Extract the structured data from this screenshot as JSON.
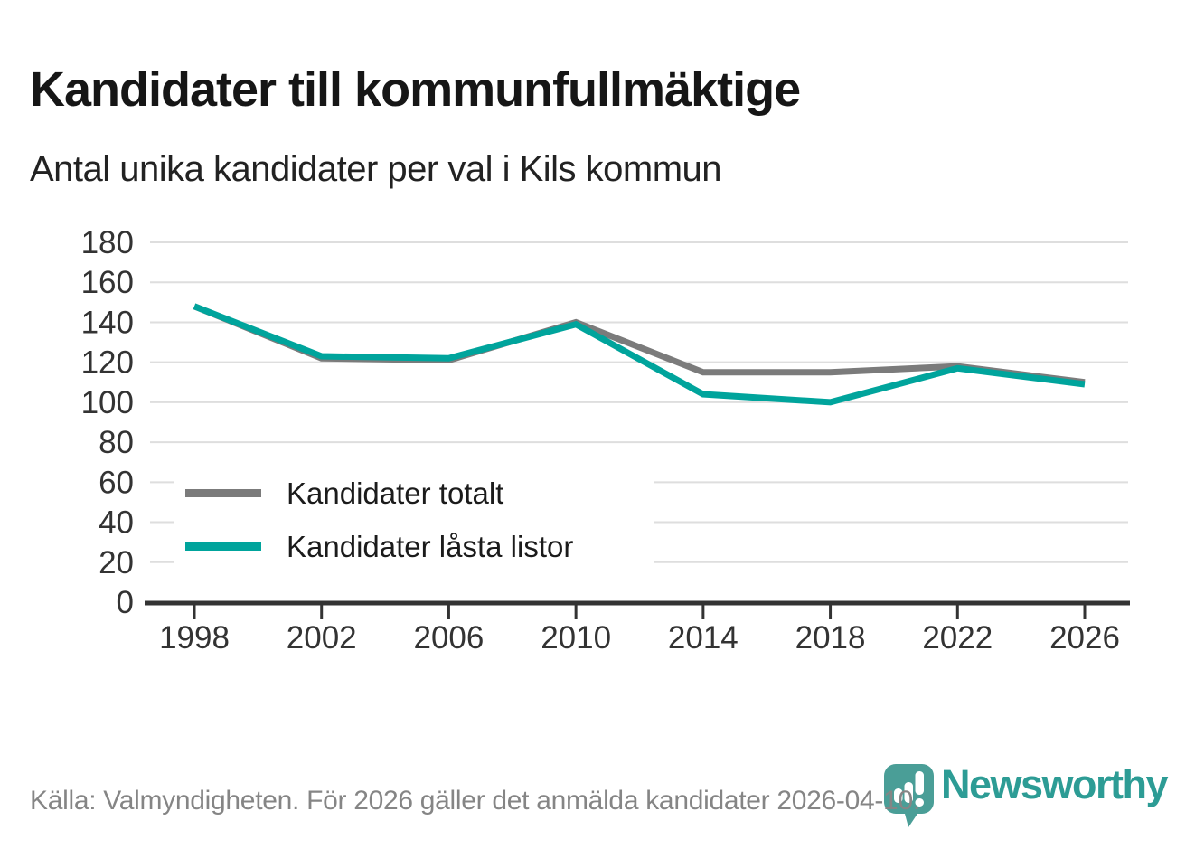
{
  "header": {
    "title": "Kandidater till kommunfullmäktige",
    "subtitle": "Antal unika kandidater per val i Kils kommun"
  },
  "chart_data": {
    "type": "line",
    "categories": [
      "1998",
      "2002",
      "2006",
      "2010",
      "2014",
      "2018",
      "2022",
      "2026"
    ],
    "series": [
      {
        "name": "Kandidater totalt",
        "color": "#7b7b7b",
        "values": [
          148,
          122,
          121,
          140,
          115,
          115,
          118,
          110
        ]
      },
      {
        "name": "Kandidater låsta listor",
        "color": "#00a49c",
        "values": [
          148,
          123,
          122,
          139,
          104,
          100,
          117,
          109
        ]
      }
    ],
    "xlabel": "",
    "ylabel": "",
    "ylim": [
      0,
      180
    ],
    "yticks": [
      0,
      20,
      40,
      60,
      80,
      100,
      120,
      140,
      160,
      180
    ],
    "grid": true,
    "gridline_color": "#dedede",
    "axis_color": "#333333",
    "tick_label_color": "#333333",
    "legend_position": "inside-left-bottom"
  },
  "footer": {
    "source_text": "Källa: Valmyndigheten. För 2026 gäller det anmälda kandidater 2026-04-10.",
    "brand": "Newsworthy",
    "brand_color": "#2d9c95",
    "logo_pin_color": "#4a9e97"
  }
}
